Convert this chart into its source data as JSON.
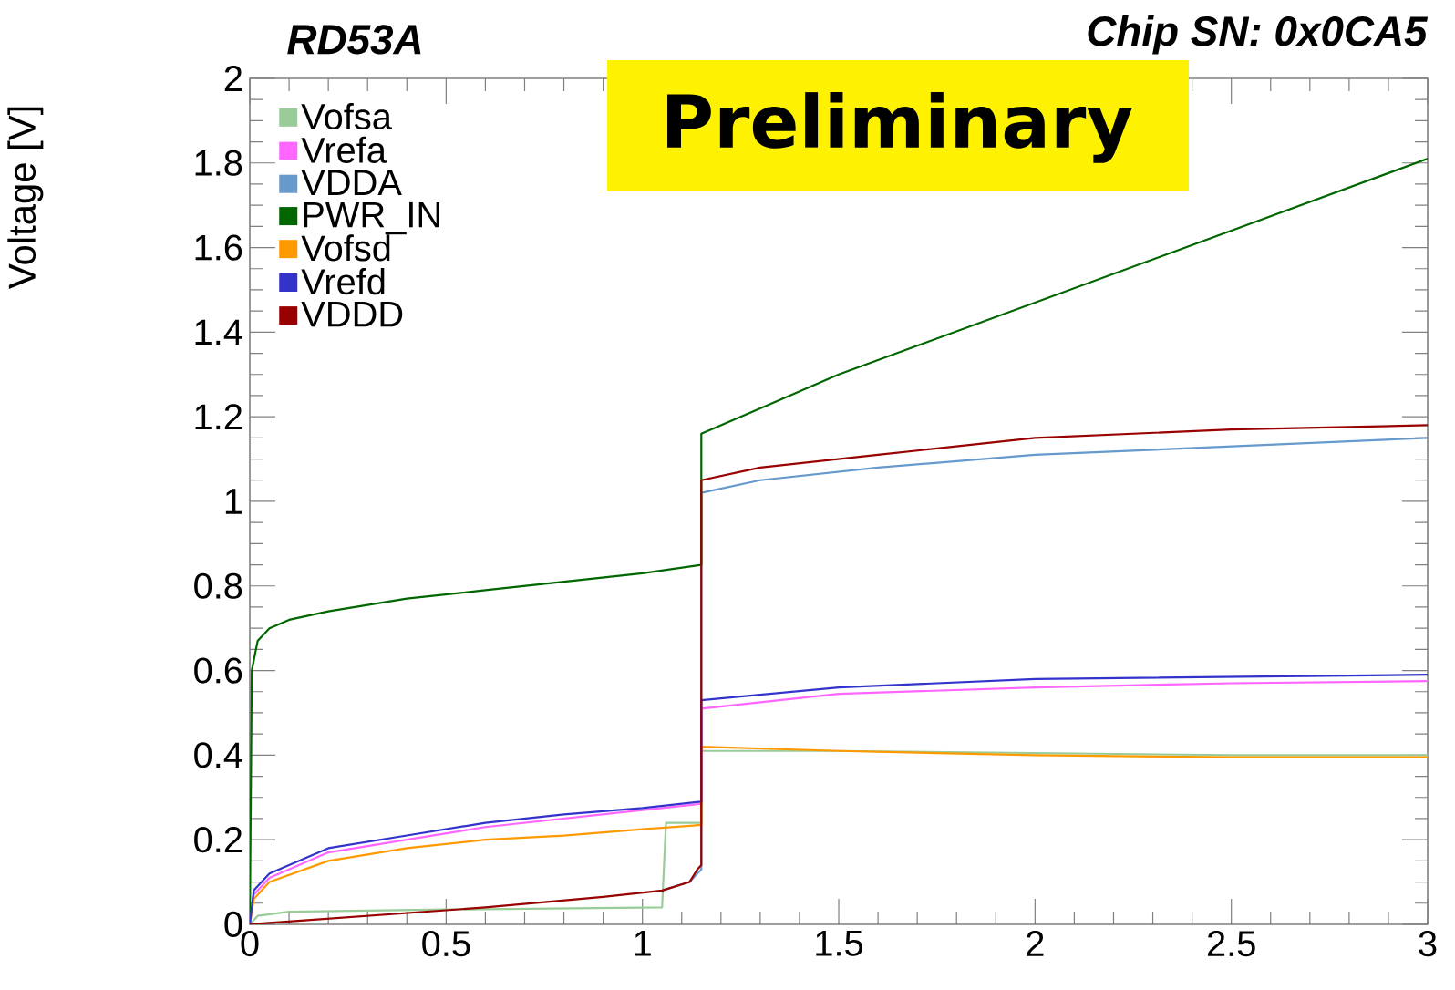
{
  "chart_data": {
    "type": "line",
    "title": "RD53A",
    "subtitle": "Chip SN: 0x0CA5",
    "ylabel": "Voltage [V]",
    "annotations": [
      "Preliminary"
    ],
    "xlim": [
      0,
      3
    ],
    "ylim": [
      0,
      2
    ],
    "xticks": [
      0,
      0.5,
      1,
      1.5,
      2,
      2.5,
      3
    ],
    "yticks": [
      0,
      0.2,
      0.4,
      0.6,
      0.8,
      1,
      1.2,
      1.4,
      1.6,
      1.8,
      2
    ],
    "grid": false,
    "legend": "top left",
    "marker": "none",
    "line_style": "solid",
    "series": [
      {
        "name": "Vofsa",
        "color": "#99cc99",
        "x": [
          0,
          0.02,
          0.1,
          0.5,
          1.05,
          1.06,
          1.15,
          1.15,
          1.5,
          2,
          2.5,
          3
        ],
        "values": [
          0,
          0.02,
          0.03,
          0.035,
          0.04,
          0.24,
          0.24,
          0.41,
          0.41,
          0.405,
          0.4,
          0.4
        ]
      },
      {
        "name": "Vrefa",
        "color": "#ff66ff",
        "x": [
          0,
          0.01,
          0.05,
          0.2,
          0.4,
          0.6,
          0.8,
          1.0,
          1.15,
          1.15,
          1.5,
          2,
          2.5,
          3
        ],
        "values": [
          0,
          0.07,
          0.11,
          0.17,
          0.2,
          0.23,
          0.25,
          0.27,
          0.285,
          0.51,
          0.545,
          0.56,
          0.57,
          0.575
        ]
      },
      {
        "name": "VDDA",
        "color": "#6699cc",
        "x": [
          1.05,
          1.12,
          1.14,
          1.15,
          1.15,
          1.3,
          1.6,
          2,
          2.5,
          3
        ],
        "values": [
          0.08,
          0.1,
          0.12,
          0.13,
          1.02,
          1.05,
          1.08,
          1.11,
          1.13,
          1.15
        ]
      },
      {
        "name": "PWR_IN",
        "color": "#006600",
        "x": [
          0,
          0.005,
          0.02,
          0.05,
          0.1,
          0.2,
          0.4,
          0.6,
          0.8,
          1.0,
          1.15,
          1.15,
          1.3,
          1.5,
          2,
          2.5,
          3
        ],
        "values": [
          0,
          0.6,
          0.67,
          0.7,
          0.72,
          0.74,
          0.77,
          0.79,
          0.81,
          0.83,
          0.85,
          1.16,
          1.22,
          1.3,
          1.47,
          1.64,
          1.81
        ]
      },
      {
        "name": "Vofsd",
        "color": "#ff9900",
        "x": [
          0,
          0.01,
          0.05,
          0.2,
          0.4,
          0.6,
          0.8,
          1.0,
          1.15,
          1.15,
          1.5,
          2,
          2.5,
          3
        ],
        "values": [
          0,
          0.06,
          0.1,
          0.15,
          0.18,
          0.2,
          0.21,
          0.225,
          0.235,
          0.42,
          0.41,
          0.4,
          0.395,
          0.395
        ]
      },
      {
        "name": "Vrefd",
        "color": "#3333cc",
        "x": [
          0,
          0.01,
          0.05,
          0.2,
          0.4,
          0.6,
          0.8,
          1.0,
          1.15,
          1.15,
          1.5,
          2,
          2.5,
          3
        ],
        "values": [
          0,
          0.08,
          0.12,
          0.18,
          0.21,
          0.24,
          0.26,
          0.275,
          0.29,
          0.53,
          0.56,
          0.58,
          0.585,
          0.59
        ]
      },
      {
        "name": "VDDD",
        "color": "#990000",
        "x": [
          0,
          0.3,
          0.6,
          0.9,
          1.05,
          1.12,
          1.14,
          1.15,
          1.15,
          1.3,
          1.6,
          2,
          2.5,
          3
        ],
        "values": [
          0,
          0.02,
          0.04,
          0.065,
          0.08,
          0.1,
          0.13,
          0.14,
          1.05,
          1.08,
          1.11,
          1.15,
          1.17,
          1.18
        ]
      }
    ]
  }
}
